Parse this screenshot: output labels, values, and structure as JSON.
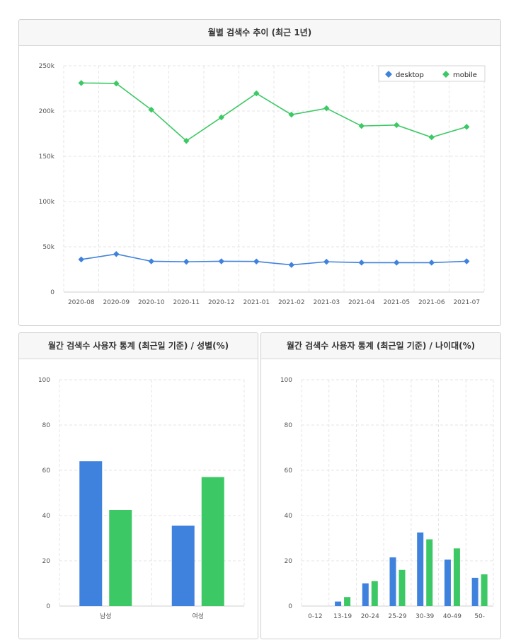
{
  "colors": {
    "desktop": "#3f82dd",
    "mobile": "#3cc965"
  },
  "chart_data": [
    {
      "type": "line",
      "title": "월별 검색수 추이 (최근 1년)",
      "categories": [
        "2020-08",
        "2020-09",
        "2020-10",
        "2020-11",
        "2020-12",
        "2021-01",
        "2021-02",
        "2021-03",
        "2021-04",
        "2021-05",
        "2021-06",
        "2021-07"
      ],
      "series": [
        {
          "name": "desktop",
          "values": [
            36000,
            42000,
            34000,
            33500,
            34000,
            33800,
            30000,
            33500,
            32500,
            32500,
            32500,
            34000
          ]
        },
        {
          "name": "mobile",
          "values": [
            231000,
            230500,
            201500,
            167000,
            193000,
            219500,
            196000,
            203000,
            183500,
            184500,
            171000,
            182500
          ]
        }
      ],
      "ylim": [
        0,
        250000
      ],
      "yticks": [
        "0",
        "50k",
        "100k",
        "150k",
        "200k",
        "250k"
      ],
      "grid": true,
      "legend": "top-right"
    },
    {
      "type": "bar",
      "title": "월간 검색수 사용자 통계 (최근일 기준) / 성별(%)",
      "categories": [
        "남성",
        "여성"
      ],
      "series": [
        {
          "values": [
            64,
            35.5
          ]
        },
        {
          "values": [
            42.5,
            57
          ]
        }
      ],
      "ylim": [
        0,
        100
      ],
      "yticks": [
        "0",
        "20",
        "40",
        "60",
        "80",
        "100"
      ],
      "grid": true
    },
    {
      "type": "bar",
      "title": "월간 검색수 사용자 통계 (최근일 기준) / 나이대(%)",
      "categories": [
        "0-12",
        "13-19",
        "20-24",
        "25-29",
        "30-39",
        "40-49",
        "50-"
      ],
      "series": [
        {
          "values": [
            0,
            2,
            10,
            21.5,
            32.5,
            20.5,
            12.5
          ]
        },
        {
          "values": [
            0,
            4,
            11,
            16,
            29.5,
            25.5,
            14
          ]
        }
      ],
      "ylim": [
        0,
        100
      ],
      "yticks": [
        "0",
        "20",
        "40",
        "60",
        "80",
        "100"
      ],
      "grid": true
    }
  ]
}
